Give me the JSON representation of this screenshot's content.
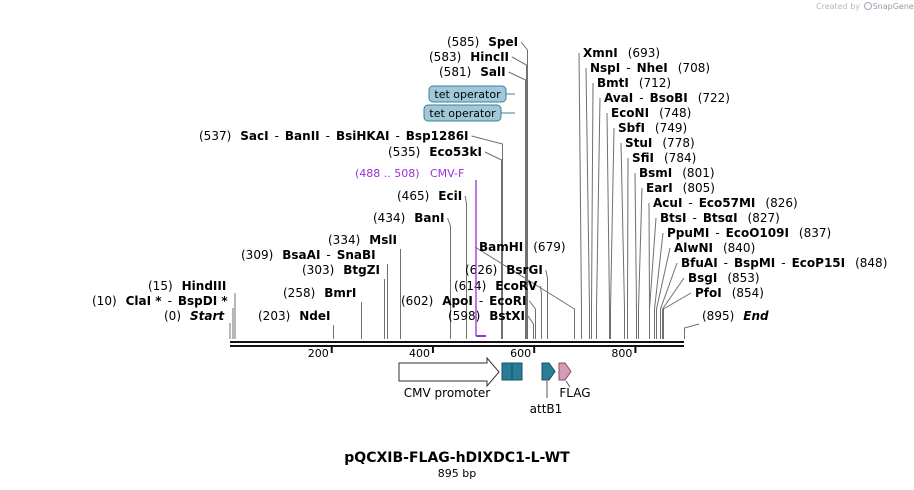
{
  "credit": {
    "prefix": "Created by",
    "brand": "SnapGene"
  },
  "plasmid": {
    "name": "pQCXIB-FLAG-hDIXDC1-L-WT",
    "length_label": "895 bp"
  },
  "ruler": {
    "ticks": [
      "200",
      "400",
      "600",
      "800"
    ]
  },
  "sites": [
    {
      "pos": "(0)",
      "names": [
        "Start"
      ],
      "italic": true
    },
    {
      "pos": "(10)",
      "names": [
        "ClaI *",
        "BspDI *"
      ]
    },
    {
      "pos": "(15)",
      "names": [
        "HindIII"
      ]
    },
    {
      "pos": "(203)",
      "names": [
        "NdeI"
      ]
    },
    {
      "pos": "(258)",
      "names": [
        "BmrI"
      ]
    },
    {
      "pos": "(303)",
      "names": [
        "BtgZI"
      ]
    },
    {
      "pos": "(309)",
      "names": [
        "BsaAI",
        "SnaBI"
      ]
    },
    {
      "pos": "(334)",
      "names": [
        "MslI"
      ]
    },
    {
      "pos": "(434)",
      "names": [
        "BanI"
      ]
    },
    {
      "pos": "(465)",
      "names": [
        "EciI"
      ]
    },
    {
      "pos": "(535)",
      "names": [
        "Eco53kI"
      ]
    },
    {
      "pos": "(537)",
      "names": [
        "SacI",
        "BanII",
        "BsiHKAI",
        "Bsp1286I"
      ]
    },
    {
      "pos": "(581)",
      "names": [
        "SalI"
      ]
    },
    {
      "pos": "(583)",
      "names": [
        "HincII"
      ]
    },
    {
      "pos": "(585)",
      "names": [
        "SpeI"
      ]
    },
    {
      "pos": "(598)",
      "names": [
        "BstXI"
      ]
    },
    {
      "pos": "(602)",
      "names": [
        "ApoI",
        "EcoRI"
      ]
    },
    {
      "pos": "(614)",
      "names": [
        "EcoRV"
      ]
    },
    {
      "pos": "(626)",
      "names": [
        "BsrGI"
      ]
    },
    {
      "pos": "(679)",
      "names": [
        "BamHI"
      ]
    },
    {
      "pos": "(693)",
      "names": [
        "XmnI"
      ]
    },
    {
      "pos": "(708)",
      "names": [
        "NspI",
        "NheI"
      ]
    },
    {
      "pos": "(712)",
      "names": [
        "BmtI"
      ]
    },
    {
      "pos": "(722)",
      "names": [
        "AvaI",
        "BsoBI"
      ]
    },
    {
      "pos": "(748)",
      "names": [
        "EcoNI"
      ]
    },
    {
      "pos": "(749)",
      "names": [
        "SbfI"
      ]
    },
    {
      "pos": "(778)",
      "names": [
        "StuI"
      ]
    },
    {
      "pos": "(784)",
      "names": [
        "SfiI"
      ]
    },
    {
      "pos": "(801)",
      "names": [
        "BsmI"
      ]
    },
    {
      "pos": "(805)",
      "names": [
        "EarI"
      ]
    },
    {
      "pos": "(826)",
      "names": [
        "AcuI",
        "Eco57MI"
      ]
    },
    {
      "pos": "(827)",
      "names": [
        "BtsI",
        "BtsαI"
      ]
    },
    {
      "pos": "(837)",
      "names": [
        "PpuMI",
        "EcoO109I"
      ]
    },
    {
      "pos": "(840)",
      "names": [
        "AlwNI"
      ]
    },
    {
      "pos": "(848)",
      "names": [
        "BfuAI",
        "BspMI",
        "EcoP15I"
      ]
    },
    {
      "pos": "(853)",
      "names": [
        "BsgI"
      ]
    },
    {
      "pos": "(854)",
      "names": [
        "PfoI"
      ]
    },
    {
      "pos": "(895)",
      "names": [
        "End"
      ],
      "italic": true
    }
  ],
  "features": {
    "tet_operator": "tet operator",
    "primer": {
      "range": "(488 .. 508)",
      "name": "CMV-F"
    },
    "cmv_promoter": "CMV promoter",
    "attB1": "attB1",
    "flag": "FLAG"
  },
  "colors": {
    "primer": "#9b30d9",
    "tet_operator_fill": "#9fc9d8",
    "tet_operator_stroke": "#3f7f96",
    "teal_feature": "#2a7d96",
    "flag_fill": "#d49ab6",
    "flag_stroke": "#8b4a6a",
    "site_line": "#707070"
  }
}
